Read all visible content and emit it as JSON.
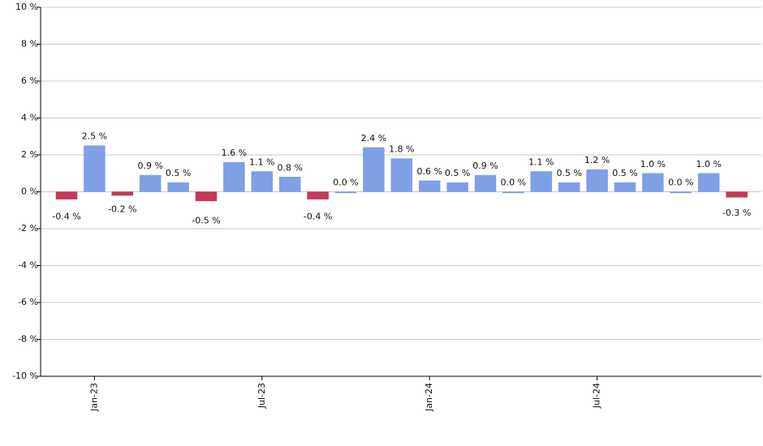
{
  "chart_data": {
    "type": "bar",
    "categories": [
      null,
      "Jan-23",
      null,
      null,
      null,
      null,
      null,
      "Jul-23",
      null,
      null,
      null,
      null,
      null,
      "Jan-24",
      null,
      null,
      null,
      null,
      null,
      "Jul-24",
      null,
      null,
      null,
      null,
      null
    ],
    "values": [
      -0.4,
      2.5,
      -0.2,
      0.9,
      0.5,
      -0.5,
      1.6,
      1.1,
      0.8,
      -0.4,
      0.0,
      2.4,
      1.8,
      0.6,
      0.5,
      0.9,
      0.0,
      1.1,
      0.5,
      1.2,
      0.5,
      1.0,
      0.0,
      1.0,
      -0.3
    ],
    "value_labels": [
      "-0.4 %",
      "2.5 %",
      "-0.2 %",
      "0.9 %",
      "0.5 %",
      "-0.5 %",
      "1.6 %",
      "1.1 %",
      "0.8 %",
      "-0.4 %",
      "0.0 %",
      "2.4 %",
      "1.8 %",
      "0.6 %",
      "0.5 %",
      "0.9 %",
      "0.0 %",
      "1.1 %",
      "0.5 %",
      "1.2 %",
      "0.5 %",
      "1.0 %",
      "0.0 %",
      "1.0 %",
      "-0.3 %"
    ],
    "color": "#7f9fe6",
    "negative_color": "#c43a58",
    "ylim": [
      -10,
      10
    ],
    "yticks": [
      {
        "value": -10,
        "label": "-10 %"
      },
      {
        "value": -8,
        "label": "-8 %"
      },
      {
        "value": -6,
        "label": "-6 %"
      },
      {
        "value": -4,
        "label": "-4 %"
      },
      {
        "value": -2,
        "label": "-2 %"
      },
      {
        "value": 0,
        "label": "0 %"
      },
      {
        "value": 2,
        "label": "2 %"
      },
      {
        "value": 4,
        "label": "4 %"
      },
      {
        "value": 6,
        "label": "6 %"
      },
      {
        "value": 8,
        "label": "8 %"
      },
      {
        "value": 10,
        "label": "10 %"
      }
    ],
    "grid": true
  }
}
